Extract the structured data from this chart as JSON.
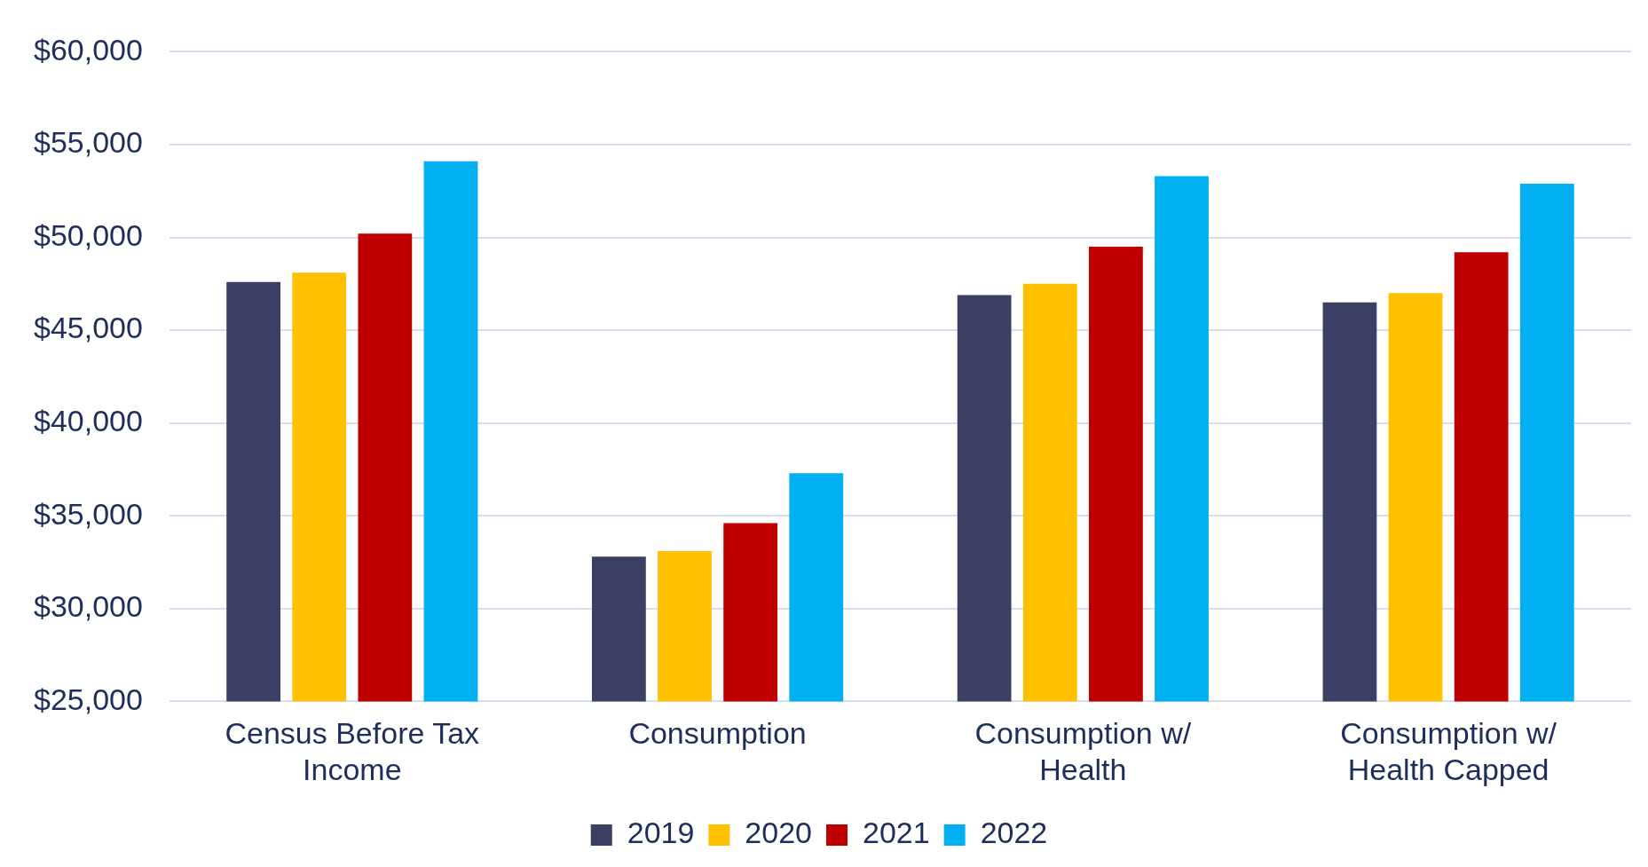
{
  "chart_data": {
    "type": "bar",
    "categories": [
      "Census Before Tax Income",
      "Consumption",
      "Consumption w/ Health",
      "Consumption w/ Health Capped"
    ],
    "series": [
      {
        "name": "2019",
        "color": "#3c3f64",
        "values": [
          47600,
          32800,
          46900,
          46500
        ]
      },
      {
        "name": "2020",
        "color": "#ffc000",
        "values": [
          48100,
          33100,
          47500,
          47000
        ]
      },
      {
        "name": "2021",
        "color": "#c00000",
        "values": [
          50200,
          34600,
          49500,
          49200
        ]
      },
      {
        "name": "2022",
        "color": "#00b0f0",
        "values": [
          54100,
          37300,
          53300,
          52900
        ]
      }
    ],
    "ylim": [
      25000,
      60000
    ],
    "yticks": [
      {
        "value": 25000,
        "label": "$25,000"
      },
      {
        "value": 30000,
        "label": "$30,000"
      },
      {
        "value": 35000,
        "label": "$35,000"
      },
      {
        "value": 40000,
        "label": "$40,000"
      },
      {
        "value": 45000,
        "label": "$45,000"
      },
      {
        "value": 50000,
        "label": "$50,000"
      },
      {
        "value": 55000,
        "label": "$55,000"
      },
      {
        "value": 60000,
        "label": "$60,000"
      }
    ],
    "grid": "y",
    "legend": "bottom"
  }
}
